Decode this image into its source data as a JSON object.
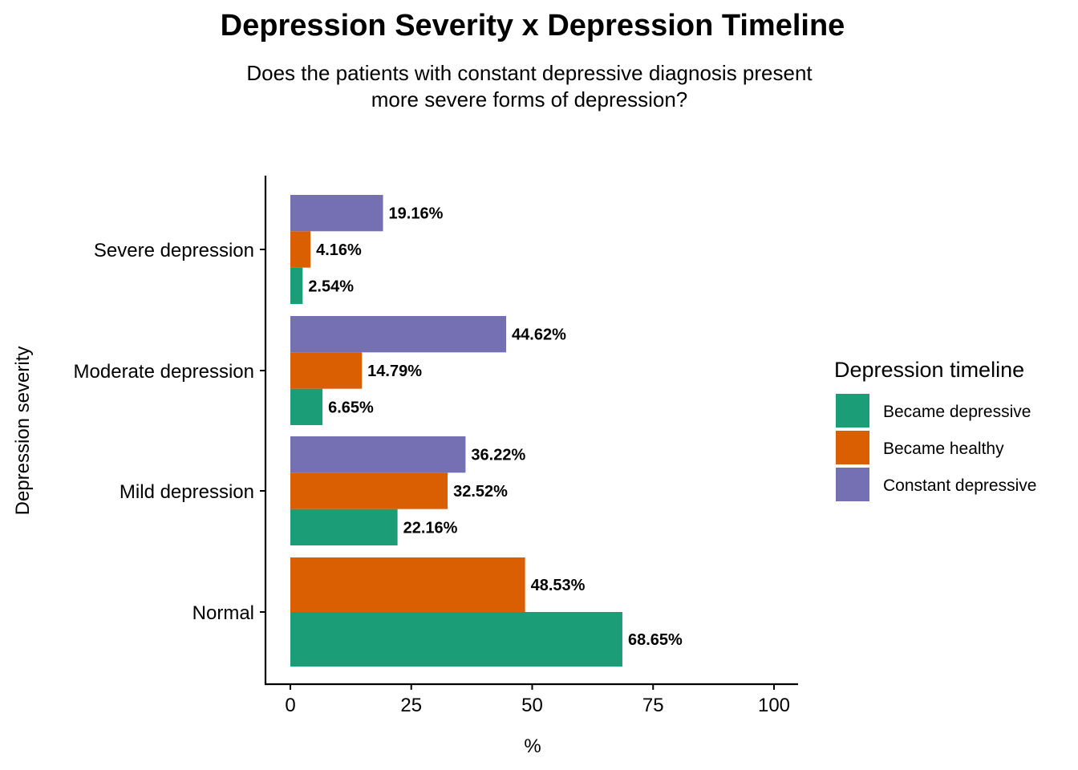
{
  "chart_data": {
    "type": "bar",
    "orientation": "horizontal",
    "title": "Depression Severity x Depression Timeline",
    "subtitle": "Does the patients with constant depressive diagnosis present\nmore severe forms of depression?",
    "xlabel": "%",
    "ylabel": "Depression severity",
    "xlim": [
      0,
      100
    ],
    "xticks": [
      0,
      25,
      50,
      75,
      100
    ],
    "categories": [
      "Normal",
      "Mild depression",
      "Moderate depression",
      "Severe depression"
    ],
    "series": [
      {
        "name": "Became depressive",
        "color": "#1B9E77",
        "values": [
          68.65,
          22.16,
          6.65,
          2.54
        ],
        "labels": [
          "68.65%",
          "22.16%",
          "6.65%",
          "2.54%"
        ]
      },
      {
        "name": "Became healthy",
        "color": "#D95F02",
        "values": [
          48.53,
          32.52,
          14.79,
          4.16
        ],
        "labels": [
          "48.53%",
          "32.52%",
          "14.79%",
          "4.16%"
        ]
      },
      {
        "name": "Constant depressive",
        "color": "#7570B3",
        "values": [
          null,
          36.22,
          44.62,
          19.16
        ],
        "labels": [
          "",
          "36.22%",
          "44.62%",
          "19.16%"
        ]
      }
    ],
    "legend": {
      "title": "Depression timeline",
      "position": "right"
    },
    "grid": false
  }
}
